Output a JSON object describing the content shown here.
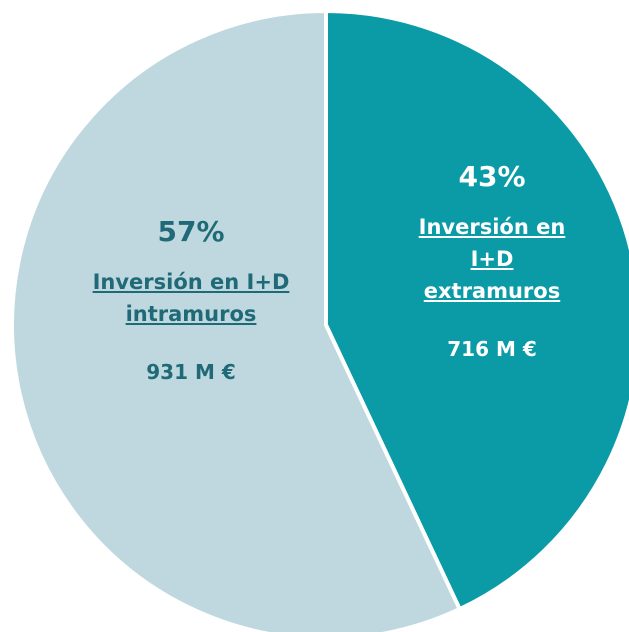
{
  "chart_data": {
    "type": "pie",
    "categories": [
      "Inversión en I+D extramuros",
      "Inversión en I+D intramuros"
    ],
    "values": [
      43,
      57
    ],
    "value_labels": [
      "43%",
      "57%"
    ],
    "amount_labels": [
      "716 M €",
      "931 M €"
    ],
    "colors": [
      "#0a9ba7",
      "#bfd8df"
    ],
    "text_colors": [
      "#ffffff",
      "#206a78"
    ]
  }
}
